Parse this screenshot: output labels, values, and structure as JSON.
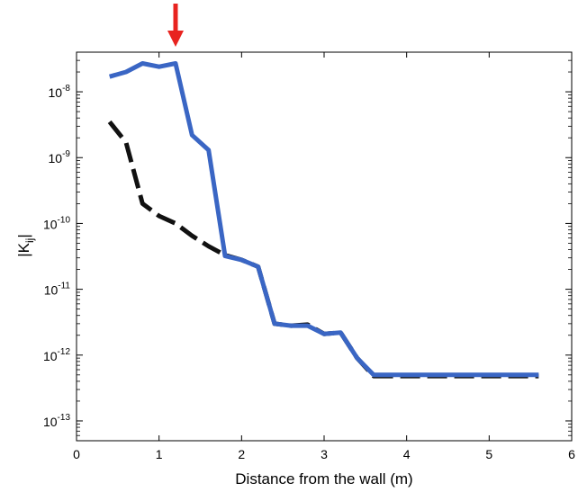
{
  "chart_data": {
    "type": "line",
    "xlabel": "Distance from the wall (m)",
    "ylabel": {
      "main": "|K",
      "sub": "ij",
      "end": "|"
    },
    "xlim": [
      0,
      6
    ],
    "ylim": [
      5e-14,
      4e-08
    ],
    "yscale": "log",
    "x_ticks": [
      0,
      1,
      2,
      3,
      4,
      5,
      6
    ],
    "x_tick_labels": [
      "0",
      "1",
      "2",
      "3",
      "4",
      "5",
      "6"
    ],
    "y_ticks": [
      {
        "value": 1e-13,
        "base": "10",
        "exp": "-13"
      },
      {
        "value": 1e-12,
        "base": "10",
        "exp": "-12"
      },
      {
        "value": 1e-11,
        "base": "10",
        "exp": "-11"
      },
      {
        "value": 1e-10,
        "base": "10",
        "exp": "-10"
      },
      {
        "value": 1e-09,
        "base": "10",
        "exp": "-9"
      },
      {
        "value": 1e-08,
        "base": "10",
        "exp": "-8"
      }
    ],
    "grid": false,
    "series": [
      {
        "style": "solid",
        "color": "#3a66c4",
        "x": [
          0.4,
          0.6,
          0.8,
          1.0,
          1.2,
          1.4,
          1.6,
          1.8,
          2.0,
          2.2,
          2.4,
          2.6,
          2.8,
          3.0,
          3.2,
          3.4,
          3.6,
          3.8,
          4.0,
          4.2,
          4.4,
          4.6,
          4.8,
          5.0,
          5.2,
          5.4,
          5.6
        ],
        "y": [
          1.7e-08,
          2e-08,
          2.7e-08,
          2.4e-08,
          2.7e-08,
          2.2e-09,
          1.3e-09,
          3.2e-11,
          2.8e-11,
          2.2e-11,
          3e-12,
          2.8e-12,
          2.8e-12,
          2.1e-12,
          2.2e-12,
          9e-13,
          5e-13,
          5e-13,
          5e-13,
          5e-13,
          5e-13,
          5e-13,
          5e-13,
          5e-13,
          5e-13,
          5e-13,
          5e-13
        ]
      },
      {
        "style": "dashed",
        "color": "#111111",
        "x": [
          0.4,
          0.6,
          0.8,
          1.0,
          1.2,
          1.4,
          1.6,
          1.8,
          2.0,
          2.2,
          2.4,
          2.6,
          2.8,
          3.0,
          3.2,
          3.4,
          3.6,
          3.8,
          4.0,
          4.2,
          4.4,
          4.6,
          4.8,
          5.0,
          5.2,
          5.4,
          5.6
        ],
        "y": [
          3.5e-09,
          1.7e-09,
          2e-10,
          1.3e-10,
          1e-10,
          6.5e-11,
          4.5e-11,
          3.3e-11,
          2.8e-11,
          2.2e-11,
          3e-12,
          2.8e-12,
          2.9e-12,
          2.1e-12,
          2.2e-12,
          9e-13,
          4.8e-13,
          4.8e-13,
          4.8e-13,
          4.8e-13,
          4.8e-13,
          4.8e-13,
          4.8e-13,
          4.8e-13,
          4.8e-13,
          4.8e-13,
          4.8e-13
        ]
      }
    ],
    "annotation": {
      "type": "arrow",
      "color": "#e8231f",
      "x": 1.2
    }
  }
}
